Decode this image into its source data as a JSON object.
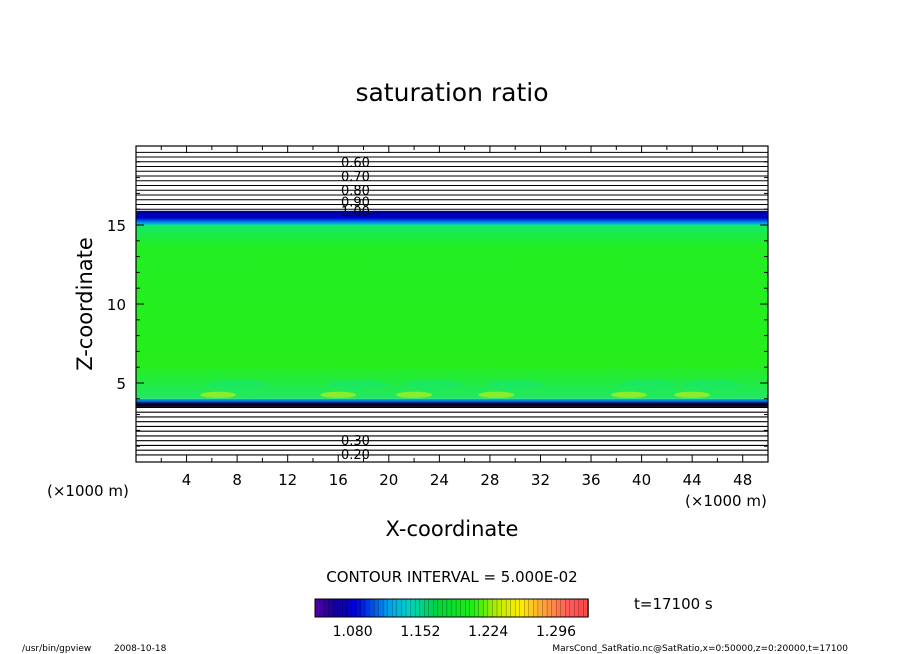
{
  "chart_data": {
    "type": "heatmap",
    "title": "saturation ratio",
    "xlabel": "X-coordinate",
    "ylabel": "Z-coordinate",
    "x_unit": "(×1000 m)",
    "x_unit_right": "(×1000 m)",
    "xlim": [
      0,
      50
    ],
    "ylim": [
      0,
      20
    ],
    "x_ticks": [
      "4",
      "8",
      "12",
      "16",
      "20",
      "24",
      "28",
      "32",
      "36",
      "40",
      "44",
      "48"
    ],
    "y_ticks": [
      "5",
      "10",
      "15"
    ],
    "contour_interval": "CONTOUR INTERVAL = 5.000E-02",
    "time_label": "t=17100 s",
    "colorbar_ticks": [
      "1.080",
      "1.152",
      "1.224",
      "1.296"
    ],
    "colorbar_range": [
      1.04,
      1.33
    ],
    "upper_contour_labels": [
      "0.60",
      "0.70",
      "0.80",
      "0.90",
      "1.00"
    ],
    "lower_contour_labels": [
      "0.20",
      "0.30"
    ],
    "regions": [
      {
        "z_from": 0.0,
        "z_to": 3.5,
        "description": "contour lines, values 0.20 to 1.00"
      },
      {
        "z_from": 3.5,
        "z_to": 4.0,
        "value": 1.05
      },
      {
        "z_from": 4.0,
        "z_to": 15.0,
        "value": 1.18
      },
      {
        "z_from": 15.0,
        "z_to": 15.9,
        "value": 1.05
      },
      {
        "z_from": 15.9,
        "z_to": 20.0,
        "description": "contour lines, values 0.60 to 1.00"
      }
    ],
    "colors": {
      "field": "#22ee22",
      "band": "#0000aa",
      "lines": "#000000"
    }
  },
  "footer": {
    "program": "/usr/bin/gpview",
    "date": "2008-10-18",
    "source": "MarsCond_SatRatio.nc@SatRatio,x=0:50000,z=0:20000,t=17100"
  }
}
